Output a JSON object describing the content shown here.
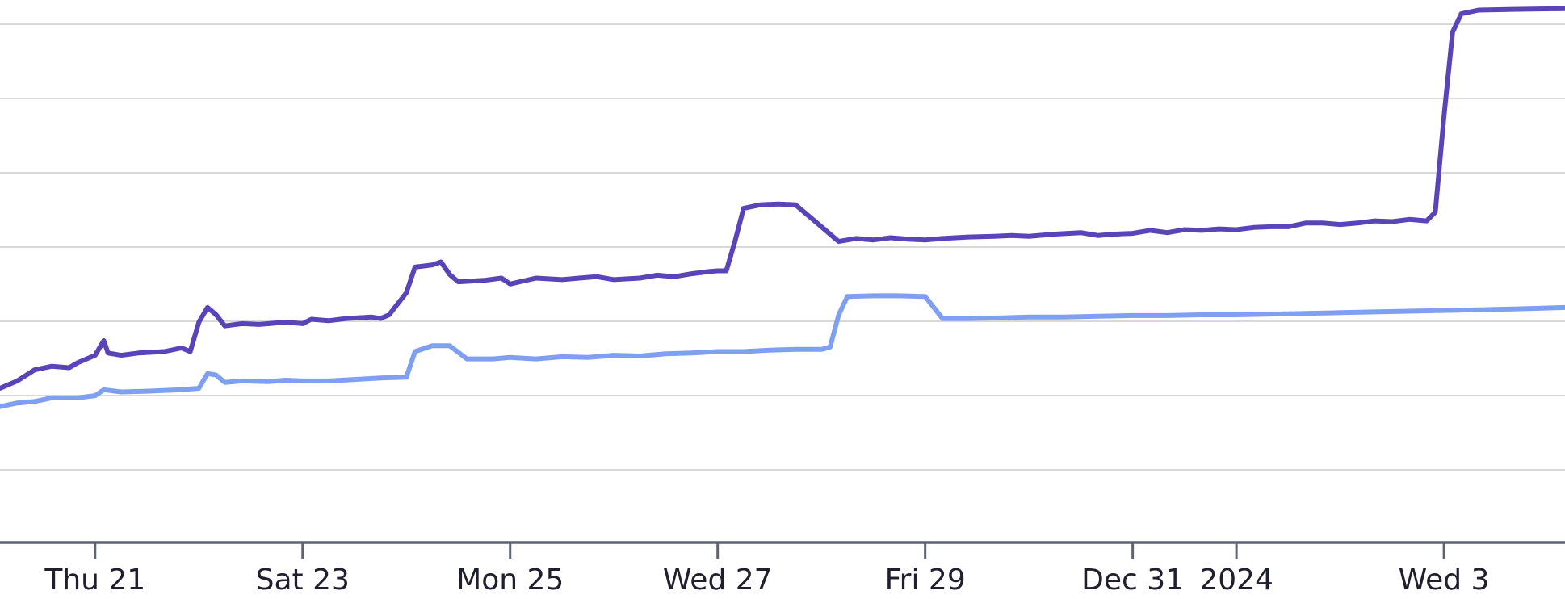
{
  "chart_data": {
    "type": "line",
    "title": "",
    "xlabel": "",
    "ylabel": "",
    "grid": true,
    "y_ticks_labeled": false,
    "x_ticks": [
      {
        "date": "2023-12-21",
        "label": "Thu 21"
      },
      {
        "date": "2023-12-23",
        "label": "Sat 23"
      },
      {
        "date": "2023-12-25",
        "label": "Mon 25"
      },
      {
        "date": "2023-12-27",
        "label": "Wed 27"
      },
      {
        "date": "2023-12-29",
        "label": "Fri 29"
      },
      {
        "date": "2023-12-31",
        "label": "Dec 31"
      },
      {
        "date": "2024-01-01",
        "label": "2024"
      },
      {
        "date": "2024-01-03",
        "label": "Wed 3"
      }
    ],
    "xlim": [
      "2023-12-20T02:00",
      "2024-01-04T04:00"
    ],
    "ylim": [
      0,
      7.3
    ],
    "series": [
      {
        "color": "#5a44b9",
        "points": [
          [
            "2023-12-20T02:00",
            2.1
          ],
          [
            "2023-12-20T06:00",
            2.2
          ],
          [
            "2023-12-20T10:00",
            2.35
          ],
          [
            "2023-12-20T14:00",
            2.4
          ],
          [
            "2023-12-20T18:00",
            2.38
          ],
          [
            "2023-12-20T20:00",
            2.45
          ],
          [
            "2023-12-21T00:00",
            2.55
          ],
          [
            "2023-12-21T02:00",
            2.75
          ],
          [
            "2023-12-21T03:00",
            2.58
          ],
          [
            "2023-12-21T06:00",
            2.55
          ],
          [
            "2023-12-21T10:00",
            2.58
          ],
          [
            "2023-12-21T16:00",
            2.6
          ],
          [
            "2023-12-21T20:00",
            2.65
          ],
          [
            "2023-12-21T22:00",
            2.6
          ],
          [
            "2023-12-22T00:00",
            3.0
          ],
          [
            "2023-12-22T02:00",
            3.2
          ],
          [
            "2023-12-22T04:00",
            3.1
          ],
          [
            "2023-12-22T06:00",
            2.95
          ],
          [
            "2023-12-22T10:00",
            2.98
          ],
          [
            "2023-12-22T14:00",
            2.97
          ],
          [
            "2023-12-22T20:00",
            3.0
          ],
          [
            "2023-12-23T00:00",
            2.98
          ],
          [
            "2023-12-23T02:00",
            3.04
          ],
          [
            "2023-12-23T06:00",
            3.02
          ],
          [
            "2023-12-23T10:00",
            3.05
          ],
          [
            "2023-12-23T16:00",
            3.07
          ],
          [
            "2023-12-23T18:00",
            3.05
          ],
          [
            "2023-12-23T20:00",
            3.1
          ],
          [
            "2023-12-24T00:00",
            3.4
          ],
          [
            "2023-12-24T02:00",
            3.75
          ],
          [
            "2023-12-24T06:00",
            3.78
          ],
          [
            "2023-12-24T08:00",
            3.82
          ],
          [
            "2023-12-24T10:00",
            3.65
          ],
          [
            "2023-12-24T12:00",
            3.55
          ],
          [
            "2023-12-24T18:00",
            3.57
          ],
          [
            "2023-12-24T22:00",
            3.6
          ],
          [
            "2023-12-25T00:00",
            3.52
          ],
          [
            "2023-12-25T06:00",
            3.6
          ],
          [
            "2023-12-25T12:00",
            3.58
          ],
          [
            "2023-12-25T16:00",
            3.6
          ],
          [
            "2023-12-25T20:00",
            3.62
          ],
          [
            "2023-12-26T00:00",
            3.58
          ],
          [
            "2023-12-26T06:00",
            3.6
          ],
          [
            "2023-12-26T10:00",
            3.64
          ],
          [
            "2023-12-26T14:00",
            3.62
          ],
          [
            "2023-12-26T18:00",
            3.66
          ],
          [
            "2023-12-26T22:00",
            3.69
          ],
          [
            "2023-12-27T00:00",
            3.7
          ],
          [
            "2023-12-27T02:00",
            3.7
          ],
          [
            "2023-12-27T04:00",
            4.1
          ],
          [
            "2023-12-27T06:00",
            4.55
          ],
          [
            "2023-12-27T10:00",
            4.6
          ],
          [
            "2023-12-27T14:00",
            4.61
          ],
          [
            "2023-12-27T18:00",
            4.6
          ],
          [
            "2023-12-28T00:00",
            4.3
          ],
          [
            "2023-12-28T04:00",
            4.1
          ],
          [
            "2023-12-28T08:00",
            4.14
          ],
          [
            "2023-12-28T12:00",
            4.12
          ],
          [
            "2023-12-28T16:00",
            4.15
          ],
          [
            "2023-12-28T20:00",
            4.13
          ],
          [
            "2023-12-29T00:00",
            4.12
          ],
          [
            "2023-12-29T04:00",
            4.14
          ],
          [
            "2023-12-29T10:00",
            4.16
          ],
          [
            "2023-12-29T16:00",
            4.17
          ],
          [
            "2023-12-29T20:00",
            4.18
          ],
          [
            "2023-12-30T00:00",
            4.17
          ],
          [
            "2023-12-30T06:00",
            4.2
          ],
          [
            "2023-12-30T12:00",
            4.22
          ],
          [
            "2023-12-30T16:00",
            4.18
          ],
          [
            "2023-12-30T20:00",
            4.2
          ],
          [
            "2023-12-31T00:00",
            4.21
          ],
          [
            "2023-12-31T04:00",
            4.25
          ],
          [
            "2023-12-31T08:00",
            4.22
          ],
          [
            "2023-12-31T12:00",
            4.26
          ],
          [
            "2023-12-31T16:00",
            4.25
          ],
          [
            "2023-12-31T20:00",
            4.27
          ],
          [
            "2024-01-01T00:00",
            4.26
          ],
          [
            "2024-01-01T04:00",
            4.29
          ],
          [
            "2024-01-01T08:00",
            4.3
          ],
          [
            "2024-01-01T12:00",
            4.3
          ],
          [
            "2024-01-01T16:00",
            4.35
          ],
          [
            "2024-01-01T20:00",
            4.35
          ],
          [
            "2024-01-02T00:00",
            4.33
          ],
          [
            "2024-01-02T04:00",
            4.35
          ],
          [
            "2024-01-02T08:00",
            4.38
          ],
          [
            "2024-01-02T12:00",
            4.37
          ],
          [
            "2024-01-02T16:00",
            4.4
          ],
          [
            "2024-01-02T20:00",
            4.38
          ],
          [
            "2024-01-02T22:00",
            4.5
          ],
          [
            "2024-01-03T00:00",
            5.8
          ],
          [
            "2024-01-03T02:00",
            6.95
          ],
          [
            "2024-01-03T04:00",
            7.2
          ],
          [
            "2024-01-03T08:00",
            7.25
          ],
          [
            "2024-01-03T16:00",
            7.26
          ],
          [
            "2024-01-04T04:00",
            7.27
          ]
        ]
      },
      {
        "color": "#7f9ff2",
        "points": [
          [
            "2023-12-20T02:00",
            1.85
          ],
          [
            "2023-12-20T06:00",
            1.9
          ],
          [
            "2023-12-20T10:00",
            1.92
          ],
          [
            "2023-12-20T14:00",
            1.97
          ],
          [
            "2023-12-20T20:00",
            1.97
          ],
          [
            "2023-12-21T00:00",
            2.0
          ],
          [
            "2023-12-21T02:00",
            2.08
          ],
          [
            "2023-12-21T06:00",
            2.05
          ],
          [
            "2023-12-21T12:00",
            2.06
          ],
          [
            "2023-12-21T20:00",
            2.08
          ],
          [
            "2023-12-22T00:00",
            2.1
          ],
          [
            "2023-12-22T02:00",
            2.3
          ],
          [
            "2023-12-22T04:00",
            2.28
          ],
          [
            "2023-12-22T06:00",
            2.18
          ],
          [
            "2023-12-22T10:00",
            2.2
          ],
          [
            "2023-12-22T16:00",
            2.19
          ],
          [
            "2023-12-22T20:00",
            2.21
          ],
          [
            "2023-12-23T00:00",
            2.2
          ],
          [
            "2023-12-23T06:00",
            2.2
          ],
          [
            "2023-12-23T12:00",
            2.22
          ],
          [
            "2023-12-23T18:00",
            2.24
          ],
          [
            "2023-12-24T00:00",
            2.25
          ],
          [
            "2023-12-24T02:00",
            2.6
          ],
          [
            "2023-12-24T06:00",
            2.68
          ],
          [
            "2023-12-24T10:00",
            2.68
          ],
          [
            "2023-12-24T14:00",
            2.5
          ],
          [
            "2023-12-24T20:00",
            2.5
          ],
          [
            "2023-12-25T00:00",
            2.52
          ],
          [
            "2023-12-25T06:00",
            2.5
          ],
          [
            "2023-12-25T12:00",
            2.53
          ],
          [
            "2023-12-25T18:00",
            2.52
          ],
          [
            "2023-12-26T00:00",
            2.55
          ],
          [
            "2023-12-26T06:00",
            2.54
          ],
          [
            "2023-12-26T12:00",
            2.57
          ],
          [
            "2023-12-26T18:00",
            2.58
          ],
          [
            "2023-12-27T00:00",
            2.6
          ],
          [
            "2023-12-27T06:00",
            2.6
          ],
          [
            "2023-12-27T12:00",
            2.62
          ],
          [
            "2023-12-27T18:00",
            2.63
          ],
          [
            "2023-12-28T00:00",
            2.63
          ],
          [
            "2023-12-28T02:00",
            2.66
          ],
          [
            "2023-12-28T04:00",
            3.1
          ],
          [
            "2023-12-28T06:00",
            3.35
          ],
          [
            "2023-12-28T12:00",
            3.36
          ],
          [
            "2023-12-28T18:00",
            3.36
          ],
          [
            "2023-12-29T00:00",
            3.35
          ],
          [
            "2023-12-29T04:00",
            3.05
          ],
          [
            "2023-12-29T10:00",
            3.05
          ],
          [
            "2023-12-29T18:00",
            3.06
          ],
          [
            "2023-12-30T00:00",
            3.07
          ],
          [
            "2023-12-30T08:00",
            3.07
          ],
          [
            "2023-12-30T16:00",
            3.08
          ],
          [
            "2023-12-31T00:00",
            3.09
          ],
          [
            "2023-12-31T08:00",
            3.09
          ],
          [
            "2023-12-31T16:00",
            3.1
          ],
          [
            "2024-01-01T00:00",
            3.1
          ],
          [
            "2024-01-01T08:00",
            3.11
          ],
          [
            "2024-01-01T16:00",
            3.12
          ],
          [
            "2024-01-02T00:00",
            3.13
          ],
          [
            "2024-01-02T08:00",
            3.14
          ],
          [
            "2024-01-02T16:00",
            3.15
          ],
          [
            "2024-01-03T00:00",
            3.16
          ],
          [
            "2024-01-03T08:00",
            3.17
          ],
          [
            "2024-01-03T16:00",
            3.18
          ],
          [
            "2024-01-04T04:00",
            3.2
          ]
        ]
      }
    ]
  }
}
